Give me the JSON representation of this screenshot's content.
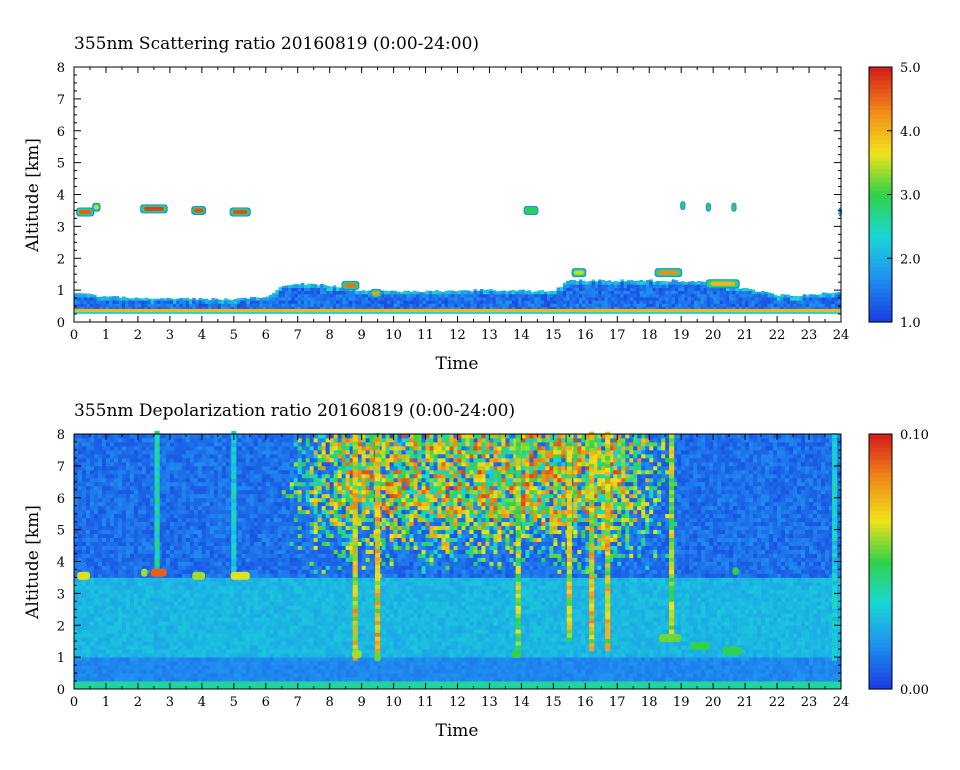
{
  "chart_data": [
    {
      "type": "heatmap",
      "title": "355nm Scattering ratio  20160819 (0:00-24:00)",
      "xlabel": "Time",
      "ylabel": "Altitude [km]",
      "xlim": [
        0,
        24
      ],
      "ylim": [
        0,
        8
      ],
      "x_ticks": [
        0,
        1,
        2,
        3,
        4,
        5,
        6,
        7,
        8,
        9,
        10,
        11,
        12,
        13,
        14,
        15,
        16,
        17,
        18,
        19,
        20,
        21,
        22,
        23,
        24
      ],
      "y_ticks": [
        0,
        1,
        2,
        3,
        4,
        5,
        6,
        7,
        8
      ],
      "colorbar": {
        "min": 1.0,
        "max": 5.0,
        "tick_values": [
          1.0,
          2.0,
          3.0,
          4.0,
          5.0
        ],
        "tick_labels": [
          "1.0",
          "2.0",
          "3.0",
          "4.0",
          "5.0"
        ],
        "colors": [
          "#1a3fe0",
          "#1f8ff0",
          "#19d6d6",
          "#2fd24a",
          "#f2e21a",
          "#f08a18",
          "#d6201a"
        ]
      },
      "background_color": "#ffffff",
      "boundary_layer": {
        "times": [
          0,
          1,
          2,
          3,
          4,
          5,
          6,
          6.5,
          7,
          8,
          9,
          10,
          11,
          12,
          13,
          14,
          15,
          15.5,
          16,
          17,
          18,
          19,
          20,
          21,
          22,
          23,
          24
        ],
        "top_km": [
          0.9,
          0.8,
          0.75,
          0.75,
          0.72,
          0.72,
          0.8,
          1.1,
          1.2,
          1.15,
          1.0,
          0.95,
          0.95,
          1.0,
          1.0,
          1.0,
          0.95,
          1.3,
          1.3,
          1.3,
          1.3,
          1.3,
          1.25,
          1.05,
          0.85,
          0.85,
          0.95
        ]
      },
      "surface_layer_km": 0.38,
      "cloud_features": [
        {
          "t0": 0.1,
          "t1": 0.6,
          "alt_km": 3.45,
          "value": 4.6
        },
        {
          "t0": 0.6,
          "t1": 0.8,
          "alt_km": 3.6,
          "value": 3.5
        },
        {
          "t0": 2.1,
          "t1": 2.9,
          "alt_km": 3.55,
          "value": 4.8
        },
        {
          "t0": 3.7,
          "t1": 4.1,
          "alt_km": 3.5,
          "value": 4.7
        },
        {
          "t0": 4.9,
          "t1": 5.5,
          "alt_km": 3.45,
          "value": 4.7
        },
        {
          "t0": 14.1,
          "t1": 14.5,
          "alt_km": 3.5,
          "value": 3.0
        },
        {
          "t0": 19.0,
          "t1": 19.1,
          "alt_km": 3.65,
          "value": 3.0
        },
        {
          "t0": 19.8,
          "t1": 19.9,
          "alt_km": 3.6,
          "value": 3.0
        },
        {
          "t0": 20.6,
          "t1": 20.7,
          "alt_km": 3.6,
          "value": 3.0
        },
        {
          "t0": 23.95,
          "t1": 24.0,
          "alt_km": 3.45,
          "value": 3.0
        },
        {
          "t0": 8.4,
          "t1": 8.9,
          "alt_km": 1.15,
          "value": 4.5
        },
        {
          "t0": 9.3,
          "t1": 9.6,
          "alt_km": 0.9,
          "value": 4.2
        },
        {
          "t0": 15.6,
          "t1": 16.0,
          "alt_km": 1.55,
          "value": 3.5
        },
        {
          "t0": 18.2,
          "t1": 19.0,
          "alt_km": 1.55,
          "value": 4.3
        },
        {
          "t0": 19.8,
          "t1": 20.8,
          "alt_km": 1.2,
          "value": 4.0
        }
      ]
    },
    {
      "type": "heatmap",
      "title": "355nm Depolarization ratio  20160819 (0:00-24:00)",
      "xlabel": "Time",
      "ylabel": "Altitude [km]",
      "xlim": [
        0,
        24
      ],
      "ylim": [
        0,
        8
      ],
      "x_ticks": [
        0,
        1,
        2,
        3,
        4,
        5,
        6,
        7,
        8,
        9,
        10,
        11,
        12,
        13,
        14,
        15,
        16,
        17,
        18,
        19,
        20,
        21,
        22,
        23,
        24
      ],
      "y_ticks": [
        0,
        1,
        2,
        3,
        4,
        5,
        6,
        7,
        8
      ],
      "colorbar": {
        "min": 0.0,
        "max": 0.1,
        "tick_values": [
          0.0,
          0.1
        ],
        "tick_labels": [
          "0.00",
          "0.10"
        ],
        "colors": [
          "#1a3fe0",
          "#1f8ff0",
          "#19d6d6",
          "#2fd24a",
          "#f2e21a",
          "#f08a18",
          "#d6201a"
        ]
      },
      "noisy_region": {
        "t_start": 6.5,
        "t_end": 19.0,
        "peak_t0": 8.5,
        "peak_t1": 17.0,
        "min_alt_km": 3.5,
        "high_value": 0.095
      },
      "plumes": [
        {
          "t": 8.8,
          "alt_bottom_km": 0.9,
          "value": 0.085
        },
        {
          "t": 9.5,
          "alt_bottom_km": 0.9,
          "value": 0.085
        },
        {
          "t": 13.9,
          "alt_bottom_km": 1.0,
          "value": 0.07
        },
        {
          "t": 15.5,
          "alt_bottom_km": 1.5,
          "value": 0.08
        },
        {
          "t": 16.2,
          "alt_bottom_km": 1.2,
          "value": 0.085
        },
        {
          "t": 16.7,
          "alt_bottom_km": 1.2,
          "value": 0.085
        },
        {
          "t": 18.7,
          "alt_bottom_km": 1.5,
          "value": 0.075
        },
        {
          "t": 2.6,
          "alt_bottom_km": 3.6,
          "value": 0.045
        },
        {
          "t": 5.0,
          "alt_bottom_km": 3.6,
          "value": 0.04
        },
        {
          "t": 23.8,
          "alt_bottom_km": 0.9,
          "value": 0.04
        }
      ],
      "cloud_features": [
        {
          "t0": 0.1,
          "t1": 0.5,
          "alt_km": 3.55,
          "value": 0.065
        },
        {
          "t0": 2.1,
          "t1": 2.3,
          "alt_km": 3.65,
          "value": 0.06
        },
        {
          "t0": 2.4,
          "t1": 2.9,
          "alt_km": 3.65,
          "value": 0.09
        },
        {
          "t0": 3.7,
          "t1": 4.1,
          "alt_km": 3.55,
          "value": 0.06
        },
        {
          "t0": 4.9,
          "t1": 5.5,
          "alt_km": 3.55,
          "value": 0.065
        },
        {
          "t0": 8.7,
          "t1": 9.0,
          "alt_km": 1.1,
          "value": 0.06
        },
        {
          "t0": 9.4,
          "t1": 9.6,
          "alt_km": 1.0,
          "value": 0.055
        },
        {
          "t0": 18.3,
          "t1": 19.0,
          "alt_km": 1.6,
          "value": 0.055
        },
        {
          "t0": 19.3,
          "t1": 19.9,
          "alt_km": 1.35,
          "value": 0.05
        },
        {
          "t0": 20.3,
          "t1": 20.9,
          "alt_km": 1.2,
          "value": 0.05
        },
        {
          "t0": 20.6,
          "t1": 20.8,
          "alt_km": 3.7,
          "value": 0.05
        },
        {
          "t0": 13.7,
          "t1": 14.0,
          "alt_km": 1.1,
          "value": 0.05
        }
      ]
    }
  ]
}
